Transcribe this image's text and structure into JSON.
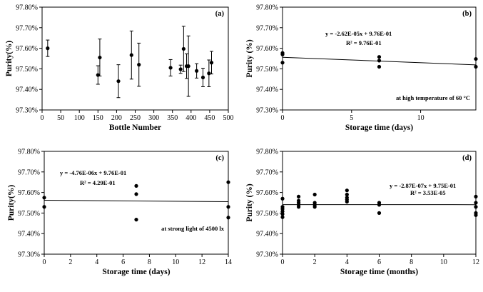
{
  "chart_data": [
    {
      "type": "scatter",
      "panel_label": "(a)",
      "xlabel": "Bottle Number",
      "ylabel": "Purity(%)",
      "xlim": [
        0,
        500
      ],
      "ylim": [
        97.3,
        97.8
      ],
      "xticks": [
        "0",
        "50",
        "100",
        "150",
        "200",
        "250",
        "300",
        "350",
        "400",
        "450",
        "500"
      ],
      "yticks": [
        "97.30%",
        "97.40%",
        "97.50%",
        "97.60%",
        "97.70%",
        "97.80%"
      ],
      "points": [
        {
          "x": 15,
          "y": 97.6,
          "err": 0.04
        },
        {
          "x": 150,
          "y": 97.47,
          "err": 0.045
        },
        {
          "x": 155,
          "y": 97.555,
          "err": 0.09
        },
        {
          "x": 205,
          "y": 97.44,
          "err": 0.08
        },
        {
          "x": 240,
          "y": 97.567,
          "err": 0.117
        },
        {
          "x": 260,
          "y": 97.52,
          "err": 0.105
        },
        {
          "x": 345,
          "y": 97.505,
          "err": 0.04
        },
        {
          "x": 372,
          "y": 97.498,
          "err": 0.02
        },
        {
          "x": 380,
          "y": 97.597,
          "err": 0.11
        },
        {
          "x": 388,
          "y": 97.513,
          "err": 0.06
        },
        {
          "x": 393,
          "y": 97.513,
          "err": 0.147
        },
        {
          "x": 415,
          "y": 97.49,
          "err": 0.035
        },
        {
          "x": 432,
          "y": 97.458,
          "err": 0.045
        },
        {
          "x": 448,
          "y": 97.478,
          "err": 0.065
        },
        {
          "x": 455,
          "y": 97.53,
          "err": 0.055
        }
      ]
    },
    {
      "type": "scatter",
      "panel_label": "(b)",
      "xlabel": "Storage time (days)",
      "ylabel": "Purity (%)",
      "xlim": [
        0,
        14
      ],
      "ylim": [
        97.3,
        97.8
      ],
      "xticks": [
        "0",
        "5",
        "10",
        "15"
      ],
      "xtick_values": [
        0,
        5,
        10,
        15
      ],
      "yticks": [
        "97.30%",
        "97.40%",
        "97.50%",
        "97.60%",
        "97.70%",
        "97.80%"
      ],
      "equation": "y = -2.62E-05x + 9.76E-01",
      "r2": "R² = 9.76E-01",
      "note": "at high temperature of 60 °C",
      "fit": {
        "slope": -0.00262,
        "intercept": 97.556
      },
      "points": [
        {
          "x": 0,
          "y": 97.53
        },
        {
          "x": 0,
          "y": 97.57
        },
        {
          "x": 0,
          "y": 97.577
        },
        {
          "x": 7,
          "y": 97.51
        },
        {
          "x": 7,
          "y": 97.54
        },
        {
          "x": 7,
          "y": 97.558
        },
        {
          "x": 14,
          "y": 97.51
        },
        {
          "x": 14,
          "y": 97.548
        }
      ]
    },
    {
      "type": "scatter",
      "panel_label": "(c)",
      "xlabel": "Storage time (days)",
      "ylabel": "Purity(%)",
      "xlim": [
        0,
        14
      ],
      "ylim": [
        97.3,
        97.8
      ],
      "xticks": [
        "0",
        "2",
        "4",
        "6",
        "8",
        "10",
        "12",
        "14"
      ],
      "xtick_values": [
        0,
        2,
        4,
        6,
        8,
        10,
        12,
        14
      ],
      "yticks": [
        "97.30%",
        "97.40%",
        "97.50%",
        "97.60%",
        "97.70%",
        "97.80%"
      ],
      "equation": "y = -4.76E-06x + 9.76E-01",
      "r2": "R² = 4.29E-01",
      "note": "at strong light of 4500 lx",
      "fit": {
        "slope": -0.000476,
        "intercept": 97.562
      },
      "points": [
        {
          "x": 0,
          "y": 97.53
        },
        {
          "x": 0,
          "y": 97.575
        },
        {
          "x": 7,
          "y": 97.468
        },
        {
          "x": 7,
          "y": 97.592
        },
        {
          "x": 7,
          "y": 97.632
        },
        {
          "x": 14,
          "y": 97.478
        },
        {
          "x": 14,
          "y": 97.53
        },
        {
          "x": 14,
          "y": 97.65
        }
      ]
    },
    {
      "type": "scatter",
      "panel_label": "(d)",
      "xlabel": "Storage time (months)",
      "ylabel": "Purity (%)",
      "xlim": [
        0,
        12
      ],
      "ylim": [
        97.3,
        97.8
      ],
      "xticks": [
        "0",
        "2",
        "4",
        "6",
        "8",
        "10",
        "12"
      ],
      "xtick_values": [
        0,
        2,
        4,
        6,
        8,
        10,
        12
      ],
      "yticks": [
        "97.30%",
        "97.40%",
        "97.50%",
        "97.60%",
        "97.70%",
        "97.80%"
      ],
      "equation": "y = -2.87E-07x + 9.75E-01",
      "r2": "R² = 3.53E-05",
      "fit": {
        "slope": -2.87e-05,
        "intercept": 97.541
      },
      "points": [
        {
          "x": 0,
          "y": 97.48
        },
        {
          "x": 0,
          "y": 97.495
        },
        {
          "x": 0,
          "y": 97.508
        },
        {
          "x": 0,
          "y": 97.52
        },
        {
          "x": 0,
          "y": 97.53
        },
        {
          "x": 0,
          "y": 97.57
        },
        {
          "x": 1,
          "y": 97.53
        },
        {
          "x": 1,
          "y": 97.54
        },
        {
          "x": 1,
          "y": 97.55
        },
        {
          "x": 1,
          "y": 97.56
        },
        {
          "x": 1,
          "y": 97.58
        },
        {
          "x": 2,
          "y": 97.53
        },
        {
          "x": 2,
          "y": 97.54
        },
        {
          "x": 2,
          "y": 97.55
        },
        {
          "x": 2,
          "y": 97.59
        },
        {
          "x": 4,
          "y": 97.555
        },
        {
          "x": 4,
          "y": 97.565
        },
        {
          "x": 4,
          "y": 97.575
        },
        {
          "x": 4,
          "y": 97.59
        },
        {
          "x": 4,
          "y": 97.61
        },
        {
          "x": 6,
          "y": 97.5
        },
        {
          "x": 6,
          "y": 97.54
        },
        {
          "x": 6,
          "y": 97.55
        },
        {
          "x": 12,
          "y": 97.49
        },
        {
          "x": 12,
          "y": 97.5
        },
        {
          "x": 12,
          "y": 97.53
        },
        {
          "x": 12,
          "y": 97.55
        },
        {
          "x": 12,
          "y": 97.58
        }
      ]
    }
  ]
}
